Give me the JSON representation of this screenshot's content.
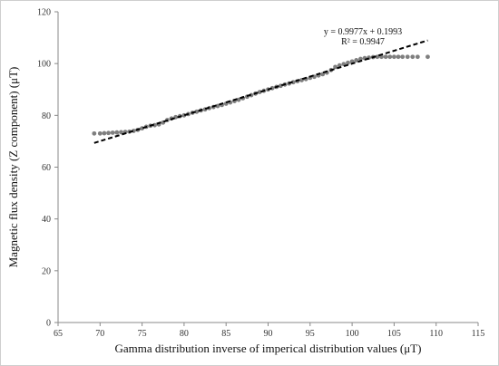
{
  "chart_data": {
    "type": "scatter",
    "xlabel": "Gamma distribution inverse of imperical distribution values (μT)",
    "ylabel": "Magnetic flux density (Z component) (μT)",
    "xlim": [
      65,
      115
    ],
    "ylim": [
      0,
      120
    ],
    "x_ticks": [
      "65",
      "70",
      "75",
      "80",
      "85",
      "90",
      "95",
      "100",
      "105",
      "110",
      "115"
    ],
    "y_ticks": [
      "0",
      "20",
      "40",
      "60",
      "80",
      "100",
      "120"
    ],
    "grid": false,
    "series": [
      {
        "marker_color": "#7f7f7f",
        "points": [
          [
            69.3,
            73.0
          ],
          [
            70.0,
            73.0
          ],
          [
            70.5,
            73.1
          ],
          [
            71.0,
            73.2
          ],
          [
            71.5,
            73.3
          ],
          [
            72.0,
            73.4
          ],
          [
            72.5,
            73.5
          ],
          [
            73.0,
            73.6
          ],
          [
            73.5,
            73.7
          ],
          [
            74.0,
            74.0
          ],
          [
            74.5,
            74.4
          ],
          [
            75.0,
            75.0
          ],
          [
            75.5,
            75.6
          ],
          [
            76.0,
            76.0
          ],
          [
            76.5,
            76.2
          ],
          [
            77.0,
            76.5
          ],
          [
            77.5,
            77.2
          ],
          [
            78.0,
            78.2
          ],
          [
            78.5,
            78.8
          ],
          [
            79.0,
            79.3
          ],
          [
            79.5,
            79.7
          ],
          [
            80.0,
            80.0
          ],
          [
            80.5,
            80.5
          ],
          [
            81.0,
            81.0
          ],
          [
            81.5,
            81.4
          ],
          [
            82.0,
            81.9
          ],
          [
            82.5,
            82.3
          ],
          [
            83.0,
            82.8
          ],
          [
            83.5,
            83.2
          ],
          [
            84.0,
            83.6
          ],
          [
            84.5,
            84.0
          ],
          [
            85.0,
            84.5
          ],
          [
            85.5,
            85.0
          ],
          [
            86.0,
            85.5
          ],
          [
            86.5,
            86.0
          ],
          [
            87.0,
            86.6
          ],
          [
            87.5,
            87.2
          ],
          [
            88.0,
            87.8
          ],
          [
            88.5,
            88.4
          ],
          [
            89.0,
            89.0
          ],
          [
            89.5,
            89.5
          ],
          [
            90.0,
            90.0
          ],
          [
            90.5,
            90.5
          ],
          [
            91.0,
            91.0
          ],
          [
            91.5,
            91.4
          ],
          [
            92.0,
            91.9
          ],
          [
            92.5,
            92.3
          ],
          [
            93.0,
            92.8
          ],
          [
            93.5,
            93.2
          ],
          [
            94.0,
            93.6
          ],
          [
            94.5,
            94.0
          ],
          [
            95.0,
            94.5
          ],
          [
            95.5,
            94.9
          ],
          [
            96.0,
            95.4
          ],
          [
            96.5,
            95.9
          ],
          [
            97.0,
            96.5
          ],
          [
            97.5,
            97.5
          ],
          [
            98.0,
            98.7
          ],
          [
            98.5,
            99.3
          ],
          [
            99.0,
            99.8
          ],
          [
            99.5,
            100.3
          ],
          [
            100.0,
            100.8
          ],
          [
            100.5,
            101.3
          ],
          [
            101.0,
            101.8
          ],
          [
            101.5,
            102.1
          ],
          [
            102.0,
            102.3
          ],
          [
            102.5,
            102.5
          ],
          [
            103.0,
            102.6
          ],
          [
            103.5,
            102.6
          ],
          [
            104.0,
            102.6
          ],
          [
            104.5,
            102.6
          ],
          [
            105.0,
            102.6
          ],
          [
            105.5,
            102.6
          ],
          [
            106.0,
            102.6
          ],
          [
            106.6,
            102.6
          ],
          [
            107.2,
            102.6
          ],
          [
            107.8,
            102.6
          ],
          [
            109.0,
            102.6
          ]
        ]
      }
    ],
    "trendline": {
      "slope": 0.9977,
      "intercept": 0.1993,
      "x_range": [
        69.3,
        109.0
      ],
      "style": "dashed",
      "color": "#000000",
      "equation": "y = 0.9977x + 0.1993",
      "r_squared": "R² = 0.9947"
    }
  }
}
